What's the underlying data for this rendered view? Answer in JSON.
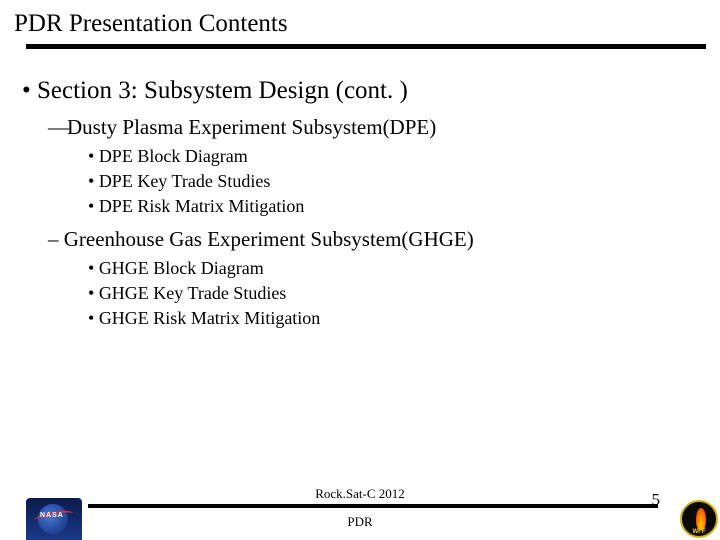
{
  "title": "PDR Presentation Contents",
  "section": "Section 3: Subsystem Design (cont. )",
  "subsections": [
    {
      "label": "Dusty Plasma Experiment Subsystem(DPE)",
      "marker": "dash",
      "items": [
        "DPE Block Diagram",
        "DPE Key Trade Studies",
        "DPE Risk Matrix Mitigation"
      ]
    },
    {
      "label": " Greenhouse Gas Experiment Subsystem(GHGE)",
      "marker": "endash",
      "items": [
        "GHGE Block Diagram",
        "GHGE Key Trade Studies",
        "GHGE Risk Matrix Mitigation"
      ]
    }
  ],
  "footer": {
    "line1": "Rock.Sat-C 2012",
    "line2": "PDR",
    "page": "5"
  },
  "logos": {
    "left_text": "NASA",
    "right_text": "WFF"
  },
  "colors": {
    "rule": "#000000",
    "background": "#ffffff",
    "text": "#000000"
  }
}
